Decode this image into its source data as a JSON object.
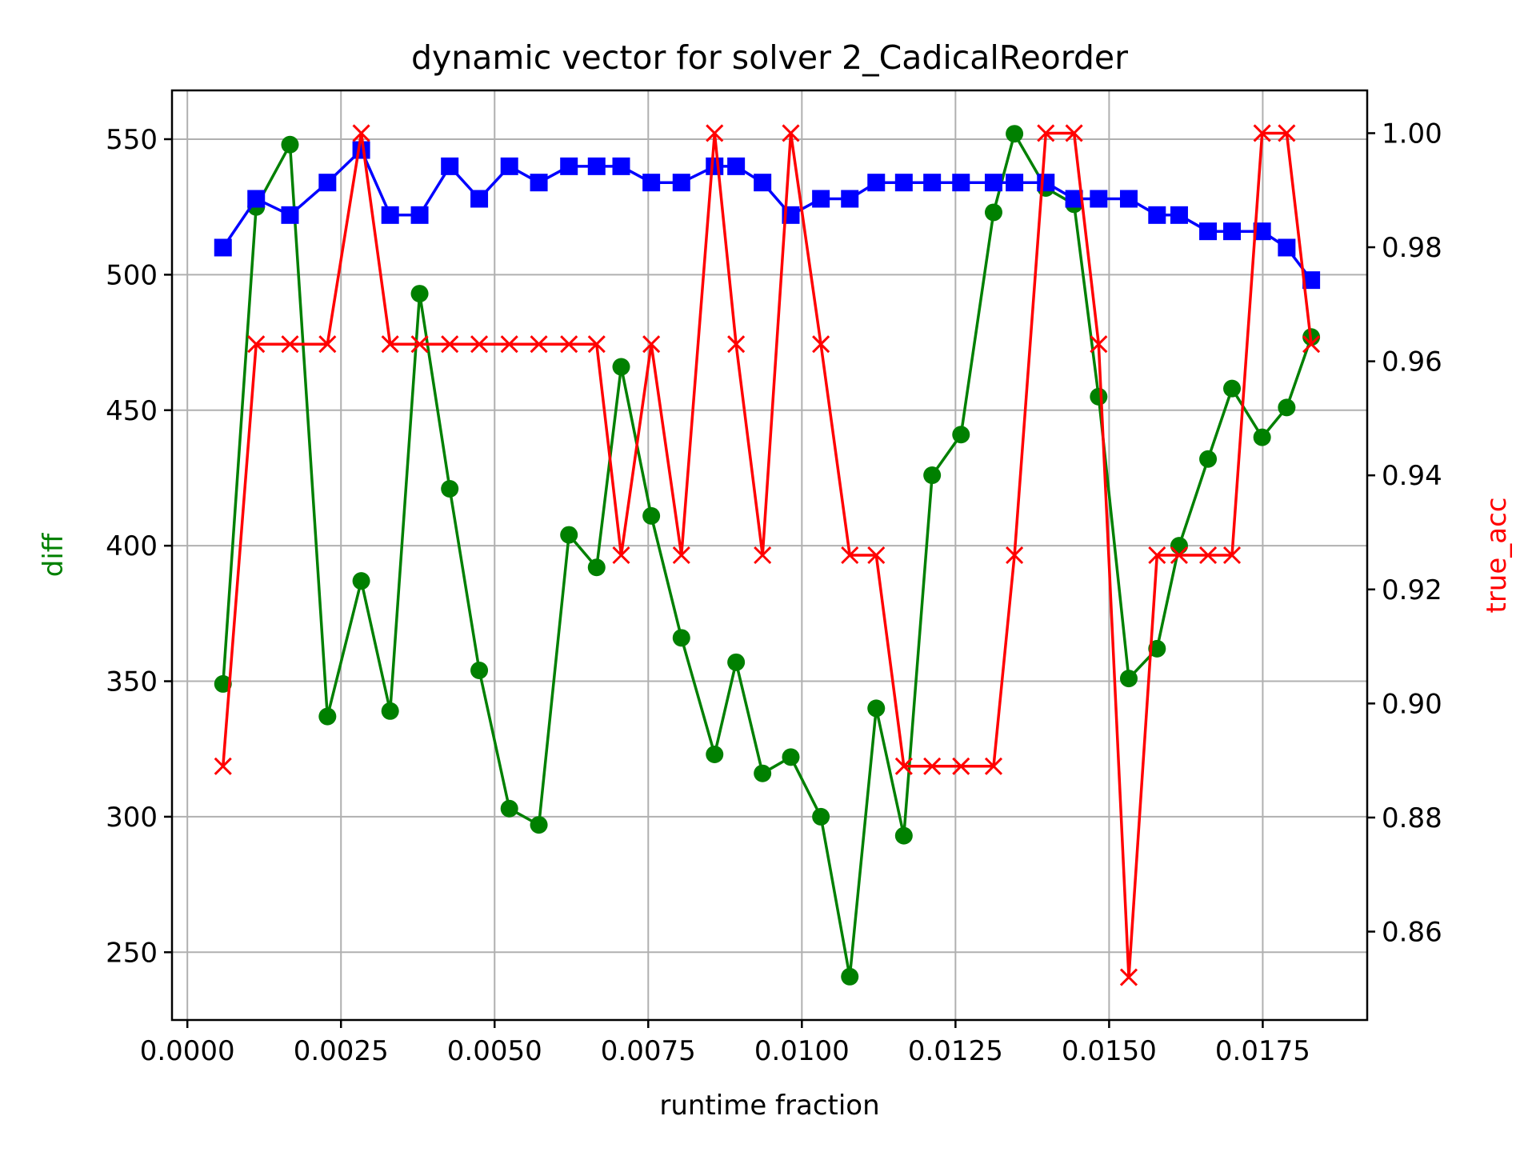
{
  "chart_data": {
    "type": "line",
    "title": "dynamic vector for solver 2_CadicalReorder",
    "xlabel": "runtime fraction",
    "ylabel_left": "diff",
    "ylabel_right": "true_acc",
    "grid": true,
    "xlim": [
      -0.00025,
      0.0192
    ],
    "ylim_left": [
      225,
      568
    ],
    "ylim_right": [
      0.8445,
      1.0075
    ],
    "x_ticks": [
      "0.0000",
      "0.0025",
      "0.0050",
      "0.0075",
      "0.0100",
      "0.0125",
      "0.0150",
      "0.0175"
    ],
    "y_left_ticks": [
      "250",
      "300",
      "350",
      "400",
      "450",
      "500",
      "550"
    ],
    "y_right_ticks": [
      "0.86",
      "0.88",
      "0.90",
      "0.92",
      "0.94",
      "0.96",
      "0.98",
      "1.00"
    ],
    "colors": {
      "diff": "#008000",
      "square": "#0000ff",
      "true_acc": "#ff0000"
    },
    "x": [
      0.00058,
      0.00112,
      0.00167,
      0.00228,
      0.00283,
      0.0033,
      0.00378,
      0.00427,
      0.00475,
      0.00524,
      0.00572,
      0.00621,
      0.00666,
      0.00706,
      0.00755,
      0.00804,
      0.00858,
      0.00893,
      0.00936,
      0.00982,
      0.01031,
      0.01078,
      0.01121,
      0.01166,
      0.01212,
      0.01259,
      0.01312,
      0.01346,
      0.01397,
      0.01443,
      0.01483,
      0.01532,
      0.01578,
      0.01614,
      0.01661,
      0.017,
      0.01749,
      0.01789,
      0.01829
    ],
    "series": [
      {
        "axis": "left",
        "marker": "circle",
        "color": "#008000",
        "values": [
          349,
          525,
          548,
          337,
          387,
          339,
          493,
          421,
          354,
          303,
          297,
          404,
          392,
          466,
          411,
          366,
          323,
          357,
          316,
          322,
          300,
          241,
          340,
          293,
          426,
          441,
          523,
          552,
          532,
          526,
          455,
          351,
          362,
          400,
          432,
          458,
          440,
          451,
          477
        ]
      },
      {
        "axis": "left",
        "marker": "square",
        "color": "#0000ff",
        "values": [
          510,
          528,
          522,
          534,
          546,
          522,
          522,
          540,
          528,
          540,
          534,
          540,
          540,
          540,
          534,
          534,
          540,
          540,
          534,
          522,
          528,
          528,
          534,
          534,
          534,
          534,
          534,
          534,
          534,
          528,
          528,
          528,
          522,
          522,
          516,
          516,
          516,
          510,
          498
        ]
      },
      {
        "axis": "right",
        "marker": "x",
        "color": "#ff0000",
        "values": [
          0.889,
          0.963,
          0.963,
          0.963,
          1.0,
          0.963,
          0.963,
          0.963,
          0.963,
          0.963,
          0.963,
          0.963,
          0.963,
          0.926,
          0.963,
          0.926,
          1.0,
          0.963,
          0.926,
          1.0,
          0.963,
          0.926,
          0.926,
          0.889,
          0.889,
          0.889,
          0.889,
          0.926,
          1.0,
          1.0,
          0.963,
          0.852,
          0.926,
          0.926,
          0.926,
          0.926,
          1.0,
          1.0,
          0.963
        ]
      }
    ]
  }
}
